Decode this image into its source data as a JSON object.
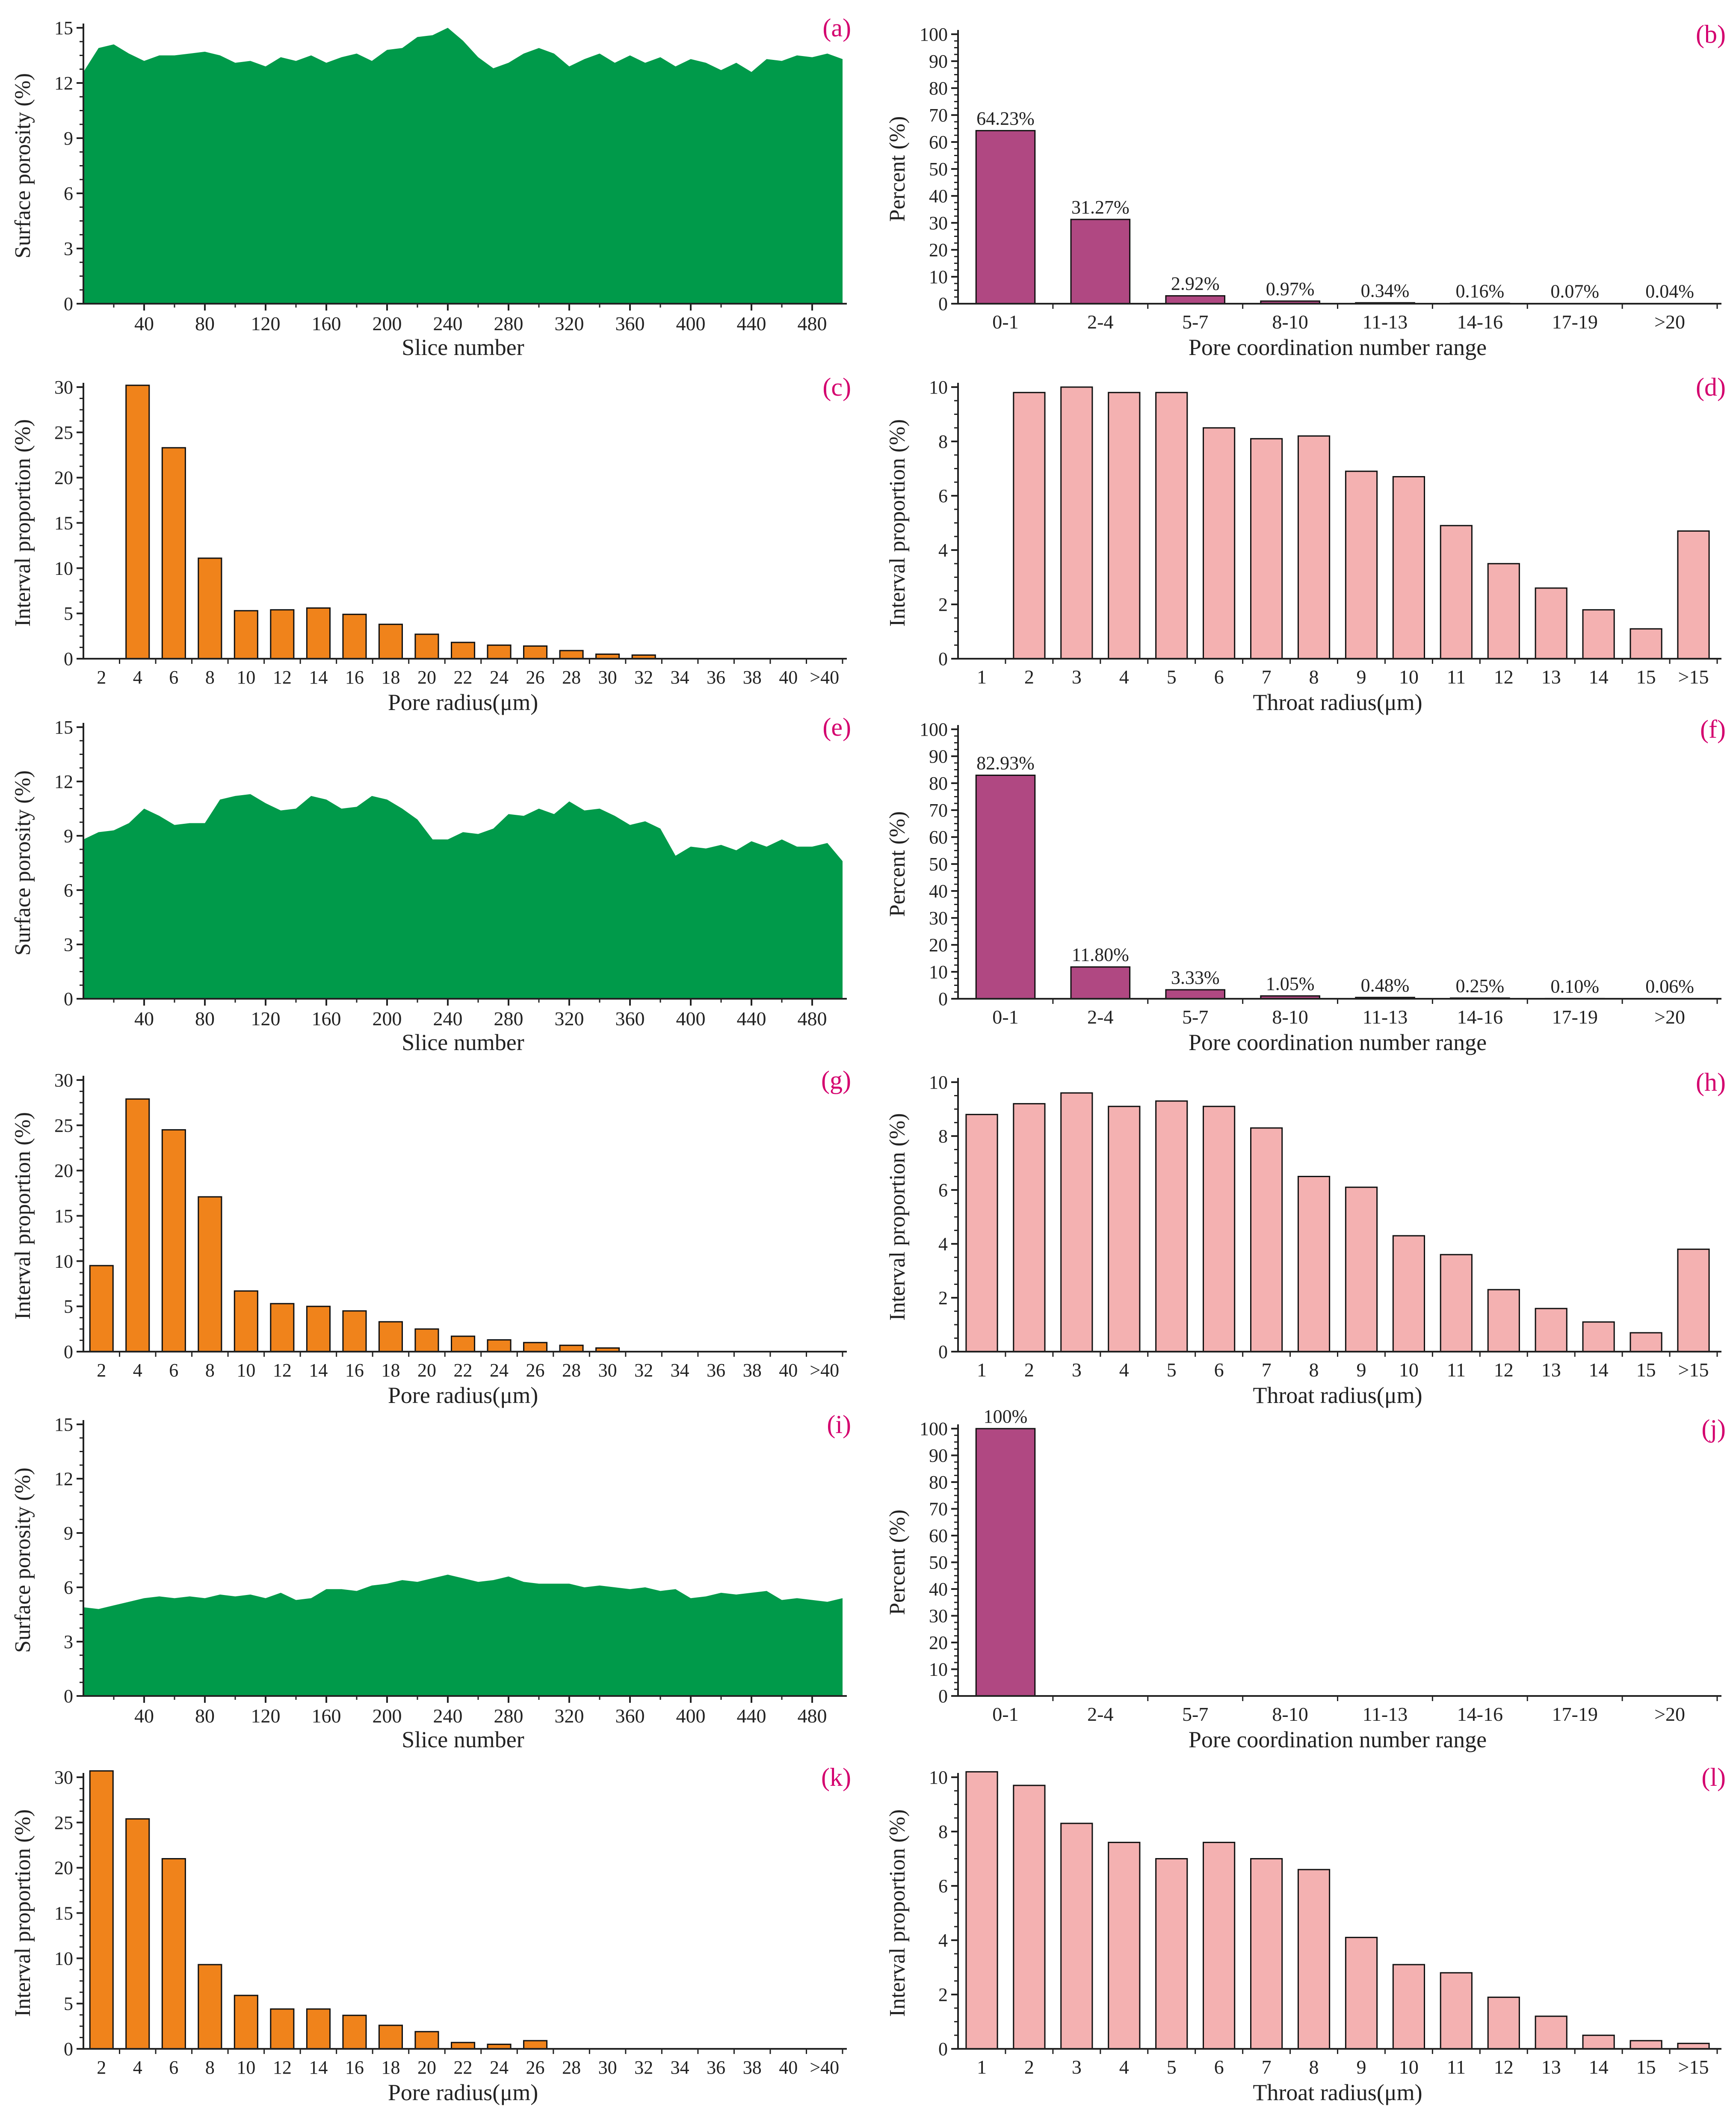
{
  "colors": {
    "area": "#009a4a",
    "pore_bar": "#f0831b",
    "throat_bar": "#f4b1b1",
    "coord_bar": "#b04882",
    "panel_label": "#d4006e",
    "text": "#222222"
  },
  "chart_data": [
    {
      "type": "area",
      "panel": "(a)",
      "xlabel": "Slice number",
      "ylabel": "Surface porosity (%)",
      "ylim": [
        0,
        15
      ],
      "yticks": [
        "0",
        "3",
        "6",
        "9",
        "12",
        "15"
      ],
      "xlim": [
        0,
        500
      ],
      "xticks": [
        "40",
        "80",
        "120",
        "160",
        "200",
        "240",
        "280",
        "320",
        "360",
        "400",
        "440",
        "480"
      ],
      "x": [
        0,
        10,
        20,
        30,
        40,
        50,
        60,
        70,
        80,
        90,
        100,
        110,
        120,
        130,
        140,
        150,
        160,
        170,
        180,
        190,
        200,
        210,
        220,
        230,
        240,
        250,
        260,
        270,
        280,
        290,
        300,
        310,
        320,
        330,
        340,
        350,
        360,
        370,
        380,
        390,
        400,
        410,
        420,
        430,
        440,
        450,
        460,
        470,
        480,
        490,
        500
      ],
      "values": [
        12.6,
        13.9,
        14.1,
        13.6,
        13.2,
        13.5,
        13.5,
        13.6,
        13.7,
        13.5,
        13.1,
        13.2,
        12.9,
        13.4,
        13.2,
        13.5,
        13.1,
        13.4,
        13.6,
        13.2,
        13.8,
        13.9,
        14.5,
        14.6,
        15.0,
        14.3,
        13.4,
        12.8,
        13.1,
        13.6,
        13.9,
        13.6,
        12.9,
        13.3,
        13.6,
        13.1,
        13.5,
        13.1,
        13.4,
        12.9,
        13.3,
        13.1,
        12.7,
        13.1,
        12.6,
        13.3,
        13.2,
        13.5,
        13.4,
        13.6,
        13.3
      ]
    },
    {
      "type": "bar",
      "panel": "(b)",
      "xlabel": "Pore coordination number range",
      "ylabel": "Percent (%)",
      "ylim": [
        0,
        100
      ],
      "yticks": [
        "0",
        "10",
        "20",
        "30",
        "40",
        "50",
        "60",
        "70",
        "80",
        "90",
        "100"
      ],
      "categories": [
        "0-1",
        "2-4",
        "5-7",
        "8-10",
        "11-13",
        "14-16",
        "17-19",
        ">20"
      ],
      "values": [
        64.23,
        31.27,
        2.92,
        0.97,
        0.34,
        0.16,
        0.07,
        0.04
      ],
      "labels": [
        "64.23%",
        "31.27%",
        "2.92%",
        "0.97%",
        "0.34%",
        "0.16%",
        "0.07%",
        "0.04%"
      ]
    },
    {
      "type": "bar",
      "panel": "(c)",
      "xlabel": "Pore radius(μm)",
      "ylabel": "Interval proportion (%)",
      "ylim": [
        0,
        30
      ],
      "yticks": [
        "0",
        "5",
        "10",
        "15",
        "20",
        "25",
        "30"
      ],
      "categories": [
        "2",
        "4",
        "6",
        "8",
        "10",
        "12",
        "14",
        "16",
        "18",
        "20",
        "22",
        "24",
        "26",
        "28",
        "30",
        "32",
        "34",
        "36",
        "38",
        "40",
        ">40"
      ],
      "values": [
        0,
        30.2,
        23.3,
        11.1,
        5.3,
        5.4,
        5.6,
        4.9,
        3.8,
        2.7,
        1.8,
        1.5,
        1.4,
        0.9,
        0.5,
        0.4,
        0,
        0,
        0,
        0,
        0
      ]
    },
    {
      "type": "bar",
      "panel": "(d)",
      "xlabel": "Throat radius(μm)",
      "ylabel": "Interval proportion (%)",
      "ylim": [
        0,
        10
      ],
      "yticks": [
        "0",
        "2",
        "4",
        "6",
        "8",
        "10"
      ],
      "categories": [
        "1",
        "2",
        "3",
        "4",
        "5",
        "6",
        "7",
        "8",
        "9",
        "10",
        "11",
        "12",
        "13",
        "14",
        "15",
        ">15"
      ],
      "values": [
        0,
        9.8,
        10.0,
        9.8,
        9.8,
        8.5,
        8.1,
        8.2,
        6.9,
        6.7,
        4.9,
        3.5,
        2.6,
        1.8,
        1.1,
        4.7
      ]
    },
    {
      "type": "area",
      "panel": "(e)",
      "xlabel": "Slice number",
      "ylabel": "Surface porosity (%)",
      "ylim": [
        0,
        15
      ],
      "yticks": [
        "0",
        "3",
        "6",
        "9",
        "12",
        "15"
      ],
      "xlim": [
        0,
        500
      ],
      "xticks": [
        "40",
        "80",
        "120",
        "160",
        "200",
        "240",
        "280",
        "320",
        "360",
        "400",
        "440",
        "480"
      ],
      "x": [
        0,
        10,
        20,
        30,
        40,
        50,
        60,
        70,
        80,
        90,
        100,
        110,
        120,
        130,
        140,
        150,
        160,
        170,
        180,
        190,
        200,
        210,
        220,
        230,
        240,
        250,
        260,
        270,
        280,
        290,
        300,
        310,
        320,
        330,
        340,
        350,
        360,
        370,
        380,
        390,
        400,
        410,
        420,
        430,
        440,
        450,
        460,
        470,
        480,
        490,
        500
      ],
      "values": [
        8.8,
        9.2,
        9.3,
        9.7,
        10.5,
        10.1,
        9.6,
        9.7,
        9.7,
        11.0,
        11.2,
        11.3,
        10.8,
        10.4,
        10.5,
        11.2,
        11.0,
        10.5,
        10.6,
        11.2,
        11.0,
        10.5,
        9.9,
        8.8,
        8.8,
        9.2,
        9.1,
        9.4,
        10.2,
        10.1,
        10.5,
        10.2,
        10.9,
        10.4,
        10.5,
        10.1,
        9.6,
        9.8,
        9.4,
        7.9,
        8.4,
        8.3,
        8.5,
        8.2,
        8.7,
        8.4,
        8.8,
        8.4,
        8.4,
        8.6,
        7.6
      ]
    },
    {
      "type": "bar",
      "panel": "(f)",
      "xlabel": "Pore coordination number range",
      "ylabel": "Percent (%)",
      "ylim": [
        0,
        100
      ],
      "yticks": [
        "0",
        "10",
        "20",
        "30",
        "40",
        "50",
        "60",
        "70",
        "80",
        "90",
        "100"
      ],
      "categories": [
        "0-1",
        "2-4",
        "5-7",
        "8-10",
        "11-13",
        "14-16",
        "17-19",
        ">20"
      ],
      "values": [
        82.93,
        11.8,
        3.33,
        1.05,
        0.48,
        0.25,
        0.1,
        0.06
      ],
      "labels": [
        "82.93%",
        "11.80%",
        "3.33%",
        "1.05%",
        "0.48%",
        "0.25%",
        "0.10%",
        "0.06%"
      ]
    },
    {
      "type": "bar",
      "panel": "(g)",
      "xlabel": "Pore radius(μm)",
      "ylabel": "Interval proportion (%)",
      "ylim": [
        0,
        30
      ],
      "yticks": [
        "0",
        "5",
        "10",
        "15",
        "20",
        "25",
        "30"
      ],
      "categories": [
        "2",
        "4",
        "6",
        "8",
        "10",
        "12",
        "14",
        "16",
        "18",
        "20",
        "22",
        "24",
        "26",
        "28",
        "30",
        "32",
        "34",
        "36",
        "38",
        "40",
        ">40"
      ],
      "values": [
        9.5,
        27.9,
        24.5,
        17.1,
        6.7,
        5.3,
        5.0,
        4.5,
        3.3,
        2.5,
        1.7,
        1.3,
        1.0,
        0.7,
        0.4,
        0,
        0,
        0,
        0,
        0,
        0
      ]
    },
    {
      "type": "bar",
      "panel": "(h)",
      "xlabel": "Throat radius(μm)",
      "ylabel": "Interval proportion (%)",
      "ylim": [
        0,
        10
      ],
      "yticks": [
        "0",
        "2",
        "4",
        "6",
        "8",
        "10"
      ],
      "categories": [
        "1",
        "2",
        "3",
        "4",
        "5",
        "6",
        "7",
        "8",
        "9",
        "10",
        "11",
        "12",
        "13",
        "14",
        "15",
        ">15"
      ],
      "values": [
        8.8,
        9.2,
        9.6,
        9.1,
        9.3,
        9.1,
        8.3,
        6.5,
        6.1,
        4.3,
        3.6,
        2.3,
        1.6,
        1.1,
        0.7,
        3.8
      ]
    },
    {
      "type": "area",
      "panel": "(i)",
      "xlabel": "Slice number",
      "ylabel": "Surface porosity (%)",
      "ylim": [
        0,
        15
      ],
      "yticks": [
        "0",
        "3",
        "6",
        "9",
        "12",
        "15"
      ],
      "xlim": [
        0,
        500
      ],
      "xticks": [
        "40",
        "80",
        "120",
        "160",
        "200",
        "240",
        "280",
        "320",
        "360",
        "400",
        "440",
        "480"
      ],
      "x": [
        0,
        10,
        20,
        30,
        40,
        50,
        60,
        70,
        80,
        90,
        100,
        110,
        120,
        130,
        140,
        150,
        160,
        170,
        180,
        190,
        200,
        210,
        220,
        230,
        240,
        250,
        260,
        270,
        280,
        290,
        300,
        310,
        320,
        330,
        340,
        350,
        360,
        370,
        380,
        390,
        400,
        410,
        420,
        430,
        440,
        450,
        460,
        470,
        480,
        490,
        500
      ],
      "values": [
        4.9,
        4.8,
        5.0,
        5.2,
        5.4,
        5.5,
        5.4,
        5.5,
        5.4,
        5.6,
        5.5,
        5.6,
        5.4,
        5.7,
        5.3,
        5.4,
        5.9,
        5.9,
        5.8,
        6.1,
        6.2,
        6.4,
        6.3,
        6.5,
        6.7,
        6.5,
        6.3,
        6.4,
        6.6,
        6.3,
        6.2,
        6.2,
        6.2,
        6.0,
        6.1,
        6.0,
        5.9,
        6.0,
        5.8,
        5.9,
        5.4,
        5.5,
        5.7,
        5.6,
        5.7,
        5.8,
        5.3,
        5.4,
        5.3,
        5.2,
        5.4
      ]
    },
    {
      "type": "bar",
      "panel": "(j)",
      "xlabel": "Pore coordination number range",
      "ylabel": "Percent (%)",
      "ylim": [
        0,
        100
      ],
      "yticks": [
        "0",
        "10",
        "20",
        "30",
        "40",
        "50",
        "60",
        "70",
        "80",
        "90",
        "100"
      ],
      "categories": [
        "0-1",
        "2-4",
        "5-7",
        "8-10",
        "11-13",
        "14-16",
        "17-19",
        ">20"
      ],
      "values": [
        100,
        0,
        0,
        0,
        0,
        0,
        0,
        0
      ],
      "labels": [
        "100%",
        "",
        "",
        "",
        "",
        "",
        "",
        ""
      ]
    },
    {
      "type": "bar",
      "panel": "(k)",
      "xlabel": "Pore radius(μm)",
      "ylabel": "Interval proportion (%)",
      "ylim": [
        0,
        30
      ],
      "yticks": [
        "0",
        "5",
        "10",
        "15",
        "20",
        "25",
        "30"
      ],
      "categories": [
        "2",
        "4",
        "6",
        "8",
        "10",
        "12",
        "14",
        "16",
        "18",
        "20",
        "22",
        "24",
        "26",
        "28",
        "30",
        "32",
        "34",
        "36",
        "38",
        "40",
        ">40"
      ],
      "values": [
        30.7,
        25.4,
        21.0,
        9.3,
        5.9,
        4.4,
        4.4,
        3.7,
        2.6,
        1.9,
        0.7,
        0.5,
        0.9,
        0,
        0,
        0,
        0,
        0,
        0,
        0,
        0
      ]
    },
    {
      "type": "bar",
      "panel": "(l)",
      "xlabel": "Throat radius(μm)",
      "ylabel": "Interval proportion (%)",
      "ylim": [
        0,
        10
      ],
      "yticks": [
        "0",
        "2",
        "4",
        "6",
        "8",
        "10"
      ],
      "categories": [
        "1",
        "2",
        "3",
        "4",
        "5",
        "6",
        "7",
        "8",
        "9",
        "10",
        "11",
        "12",
        "13",
        "14",
        "15",
        ">15"
      ],
      "values": [
        10.2,
        9.7,
        8.3,
        7.6,
        7.0,
        7.6,
        7.0,
        6.6,
        4.1,
        3.1,
        2.8,
        1.9,
        1.2,
        0.5,
        0.3,
        0.2
      ]
    }
  ]
}
